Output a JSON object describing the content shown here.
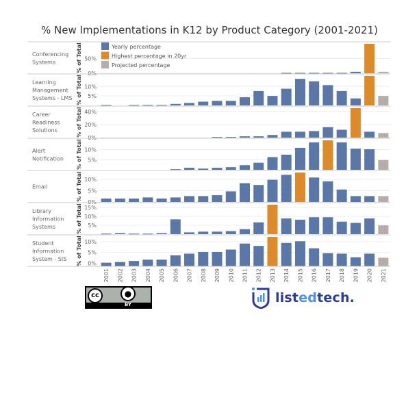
{
  "chart_data": {
    "type": "bar",
    "title": "% New Implementations in K12 by Product Category (2001-2021)",
    "ylabel": "% of Total",
    "categories": [
      "2001",
      "2002",
      "2003",
      "2004",
      "2005",
      "2006",
      "2007",
      "2008",
      "2009",
      "2010",
      "2011",
      "2012",
      "2013",
      "2014",
      "2015",
      "2016",
      "2017",
      "2018",
      "2019",
      "2020",
      "2021"
    ],
    "legend": {
      "placement": "top-left",
      "items": [
        {
          "label": "Yearly percentage",
          "color": "#5b77a8"
        },
        {
          "label": "Highest percentage in 20yr",
          "color": "#dd8b2a"
        },
        {
          "label": "Projected percentage",
          "color": "#b5ada9"
        }
      ]
    },
    "panels": [
      {
        "name": "Conferencing Systems",
        "ylim": [
          0,
          100
        ],
        "ticks": [
          0,
          50
        ],
        "tick_labels": [
          "0%",
          "50%"
        ],
        "highlight": "2020",
        "values": [
          0,
          0,
          0,
          0,
          0,
          0,
          0,
          0,
          0,
          0,
          0,
          0,
          0,
          1.5,
          1.5,
          1.5,
          1.5,
          1.5,
          5,
          100,
          5
        ]
      },
      {
        "name": "Learning Management Systems - LMS",
        "ylim": [
          0,
          15.5
        ],
        "ticks": [
          5,
          10
        ],
        "tick_labels": [
          "5%",
          "10%"
        ],
        "highlight": "2020",
        "values": [
          0.3,
          0,
          0.3,
          0.3,
          0.3,
          0.8,
          1.3,
          2,
          2.4,
          2.4,
          4.3,
          7.6,
          5,
          8.8,
          14,
          12.7,
          10.7,
          7.6,
          3.7,
          15.5,
          5
        ]
      },
      {
        "name": "Career Readiness Solutions",
        "ylim": [
          0,
          45
        ],
        "ticks": [
          0,
          20,
          40
        ],
        "tick_labels": [
          "0%",
          "20%",
          "40%"
        ],
        "highlight": "2019",
        "values": [
          0,
          0,
          0,
          0,
          0,
          0,
          0,
          0,
          1,
          1,
          2,
          2,
          4,
          9,
          9,
          10,
          16,
          12,
          45,
          9,
          7
        ]
      },
      {
        "name": "Alert Notification",
        "ylim": [
          0,
          14.6
        ],
        "ticks": [
          5,
          10
        ],
        "tick_labels": [
          "5%",
          "10%"
        ],
        "highlight": "2017",
        "values": [
          0,
          0,
          0,
          0,
          0,
          0.3,
          1,
          0.6,
          1,
          1.3,
          2.3,
          3.5,
          6.3,
          7.5,
          10.9,
          13.6,
          14.6,
          13.6,
          10.5,
          10.2,
          4.8
        ]
      },
      {
        "name": "Email",
        "ylim": [
          0,
          13
        ],
        "ticks": [
          0,
          5,
          10
        ],
        "tick_labels": [
          "0%",
          "5%",
          "10%"
        ],
        "highlight": "2015",
        "values": [
          1.5,
          1.5,
          1.5,
          2,
          1.5,
          2,
          2.6,
          2.6,
          3,
          4.7,
          8.3,
          7.5,
          9.8,
          12,
          13,
          10.8,
          9.1,
          5.5,
          2.6,
          2.6,
          2.6
        ]
      },
      {
        "name": "Library Information Systems",
        "ylim": [
          0,
          16.5
        ],
        "ticks": [
          5,
          10,
          15
        ],
        "tick_labels": [
          "5%",
          "10%",
          "15%"
        ],
        "highlight": "2013",
        "values": [
          0.3,
          0.6,
          0.3,
          0.3,
          0.6,
          8.3,
          1,
          1.4,
          1.4,
          1.7,
          2.8,
          6.6,
          16.5,
          8.8,
          8.1,
          9.5,
          9.5,
          7,
          6.3,
          8.8,
          4.9
        ]
      },
      {
        "name": "Student Information System - SIS",
        "ylim": [
          -1.5,
          12.2
        ],
        "ticks": [
          0,
          5,
          10
        ],
        "tick_labels": [
          "0%",
          "5%",
          "10%"
        ],
        "highlight": "2013",
        "values": [
          0.2,
          0.5,
          1,
          1.6,
          1.6,
          3.6,
          4.4,
          5.2,
          5.2,
          6.3,
          9.1,
          8,
          12.2,
          9.4,
          10.2,
          6.9,
          4.6,
          4.4,
          2.7,
          4.4,
          2.5
        ]
      }
    ],
    "projected_category": "2021",
    "grid": true
  },
  "footer": {
    "license_text": "BY",
    "logo_prefix": "list",
    "logo_mid": "ed",
    "logo_suffix": "tech."
  }
}
